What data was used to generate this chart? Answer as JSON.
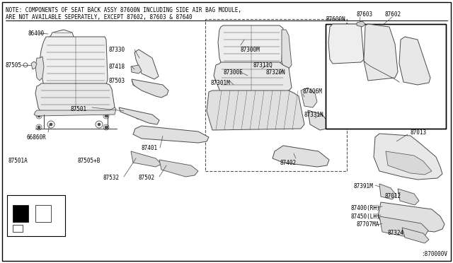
{
  "bg_color": "#ffffff",
  "border_color": "#000000",
  "line_color": "#4a4a4a",
  "text_color": "#000000",
  "note_line1": "NOTE: COMPONENTS OF SEAT BACK ASSY 87600N INCLUDING SIDE AIR BAG MODULE,",
  "note_line2": "ARE NOT AVAILABLE SEPERATELY, EXCEPT 87602, 87603 & 87640",
  "part_number_bottom": ":870000V",
  "lw": 0.6,
  "fs": 5.5
}
